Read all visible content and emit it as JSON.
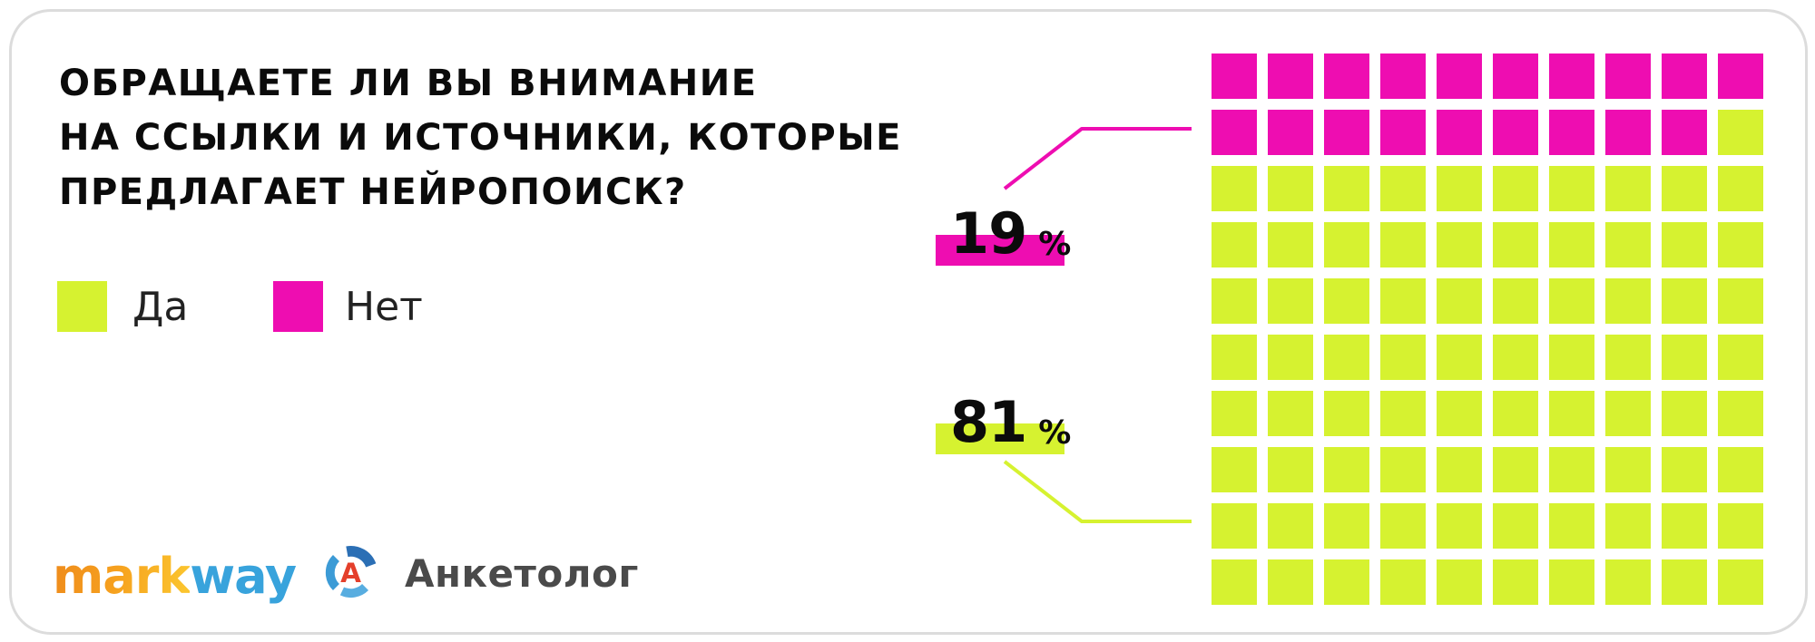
{
  "title": {
    "line1": "ОБРАЩАЕТЕ ЛИ ВЫ ВНИМАНИЕ",
    "line2": "НА ССЫЛКИ И ИСТОЧНИКИ, КОТОРЫЕ",
    "line3": "ПРЕДЛАГАЕТ НЕЙРОПОИСК?"
  },
  "legend": {
    "yes_label": "Да",
    "no_label": "Нет"
  },
  "labels": {
    "no": {
      "value": "19",
      "percent_sign": "%"
    },
    "yes": {
      "value": "81",
      "percent_sign": "%"
    }
  },
  "logos": {
    "markway": {
      "part1": "mark",
      "part2": "way"
    },
    "anketolog": {
      "icon_letter": "А",
      "text": "Анкетолог"
    }
  },
  "colors": {
    "yes_green": "#d6f230",
    "no_magenta": "#ee0db1",
    "title_text": "#0b0b0b",
    "legend_text": "#222222",
    "card_border": "#dcdcdc",
    "markway_orange": "#f6a01e",
    "markway_blue": "#38a3dc",
    "anketolog_text": "#4a4a4a",
    "anketolog_red": "#e43f2b",
    "anketolog_blue_dark": "#2b6fb5",
    "anketolog_blue_mid": "#3c9bd6",
    "anketolog_blue_light": "#58ade0"
  },
  "chart_data": {
    "type": "waffle",
    "title": "ОБРАЩАЕТЕ ЛИ ВЫ ВНИМАНИЕ НА ССЫЛКИ И ИСТОЧНИКИ, КОТОРЫЕ ПРЕДЛАГАЕТ НЕЙРОПОИСК?",
    "grid": {
      "rows": 10,
      "cols": 10,
      "fill_order": "row-major-from-top-left"
    },
    "series": [
      {
        "name": "Нет",
        "value": 19,
        "color": "#ee0db1"
      },
      {
        "name": "Да",
        "value": 81,
        "color": "#d6f230"
      }
    ],
    "units": "%",
    "legend_position": "left",
    "annotations": [
      {
        "text": "19 %",
        "series": "Нет",
        "connector": true
      },
      {
        "text": "81 %",
        "series": "Да",
        "connector": true
      }
    ]
  }
}
